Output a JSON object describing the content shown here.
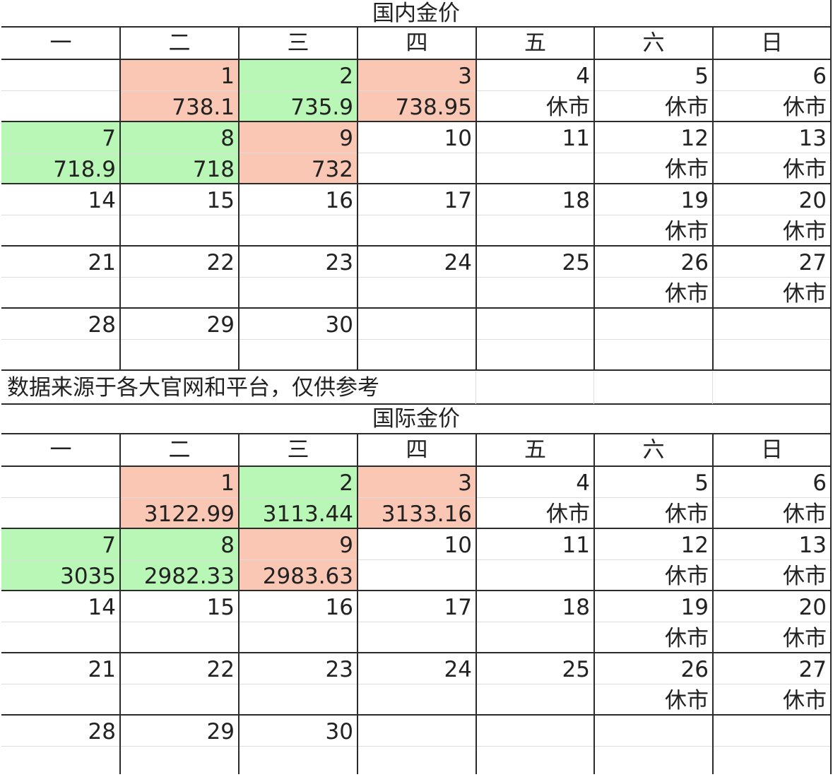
{
  "colors": {
    "up": "#fbc7b5",
    "down": "#b9f7b6",
    "border": "#2b2b2b",
    "gridline": "#dcdcdc"
  },
  "weekdays": [
    "一",
    "二",
    "三",
    "四",
    "五",
    "六",
    "日"
  ],
  "note": "数据来源于各大官网和平台，仅供参考",
  "sections": [
    {
      "title": "国内金价",
      "cells": [
        {
          "row": 0,
          "col": 1,
          "day": "1",
          "value": "738.1",
          "trend": "up"
        },
        {
          "row": 0,
          "col": 2,
          "day": "2",
          "value": "735.9",
          "trend": "down"
        },
        {
          "row": 0,
          "col": 3,
          "day": "3",
          "value": "738.95",
          "trend": "up"
        },
        {
          "row": 0,
          "col": 4,
          "day": "4",
          "value": "休市"
        },
        {
          "row": 0,
          "col": 5,
          "day": "5",
          "value": "休市"
        },
        {
          "row": 0,
          "col": 6,
          "day": "6",
          "value": "休市"
        },
        {
          "row": 1,
          "col": 0,
          "day": "7",
          "value": "718.9",
          "trend": "down"
        },
        {
          "row": 1,
          "col": 1,
          "day": "8",
          "value": "718",
          "trend": "down"
        },
        {
          "row": 1,
          "col": 2,
          "day": "9",
          "value": "732",
          "trend": "up"
        },
        {
          "row": 1,
          "col": 3,
          "day": "10",
          "value": ""
        },
        {
          "row": 1,
          "col": 4,
          "day": "11",
          "value": ""
        },
        {
          "row": 1,
          "col": 5,
          "day": "12",
          "value": "休市"
        },
        {
          "row": 1,
          "col": 6,
          "day": "13",
          "value": "休市"
        },
        {
          "row": 2,
          "col": 0,
          "day": "14",
          "value": ""
        },
        {
          "row": 2,
          "col": 1,
          "day": "15",
          "value": ""
        },
        {
          "row": 2,
          "col": 2,
          "day": "16",
          "value": ""
        },
        {
          "row": 2,
          "col": 3,
          "day": "17",
          "value": ""
        },
        {
          "row": 2,
          "col": 4,
          "day": "18",
          "value": ""
        },
        {
          "row": 2,
          "col": 5,
          "day": "19",
          "value": "休市"
        },
        {
          "row": 2,
          "col": 6,
          "day": "20",
          "value": "休市"
        },
        {
          "row": 3,
          "col": 0,
          "day": "21",
          "value": ""
        },
        {
          "row": 3,
          "col": 1,
          "day": "22",
          "value": ""
        },
        {
          "row": 3,
          "col": 2,
          "day": "23",
          "value": ""
        },
        {
          "row": 3,
          "col": 3,
          "day": "24",
          "value": ""
        },
        {
          "row": 3,
          "col": 4,
          "day": "25",
          "value": ""
        },
        {
          "row": 3,
          "col": 5,
          "day": "26",
          "value": "休市"
        },
        {
          "row": 3,
          "col": 6,
          "day": "27",
          "value": "休市"
        },
        {
          "row": 4,
          "col": 0,
          "day": "28",
          "value": ""
        },
        {
          "row": 4,
          "col": 1,
          "day": "29",
          "value": ""
        },
        {
          "row": 4,
          "col": 2,
          "day": "30",
          "value": ""
        }
      ]
    },
    {
      "title": "国际金价",
      "cells": [
        {
          "row": 0,
          "col": 1,
          "day": "1",
          "value": "3122.99",
          "trend": "up"
        },
        {
          "row": 0,
          "col": 2,
          "day": "2",
          "value": "3113.44",
          "trend": "down"
        },
        {
          "row": 0,
          "col": 3,
          "day": "3",
          "value": "3133.16",
          "trend": "up"
        },
        {
          "row": 0,
          "col": 4,
          "day": "4",
          "value": "休市"
        },
        {
          "row": 0,
          "col": 5,
          "day": "5",
          "value": "休市"
        },
        {
          "row": 0,
          "col": 6,
          "day": "6",
          "value": "休市"
        },
        {
          "row": 1,
          "col": 0,
          "day": "7",
          "value": "3035",
          "trend": "down"
        },
        {
          "row": 1,
          "col": 1,
          "day": "8",
          "value": "2982.33",
          "trend": "down"
        },
        {
          "row": 1,
          "col": 2,
          "day": "9",
          "value": "2983.63",
          "trend": "up"
        },
        {
          "row": 1,
          "col": 3,
          "day": "10",
          "value": ""
        },
        {
          "row": 1,
          "col": 4,
          "day": "11",
          "value": ""
        },
        {
          "row": 1,
          "col": 5,
          "day": "12",
          "value": "休市"
        },
        {
          "row": 1,
          "col": 6,
          "day": "13",
          "value": "休市"
        },
        {
          "row": 2,
          "col": 0,
          "day": "14",
          "value": ""
        },
        {
          "row": 2,
          "col": 1,
          "day": "15",
          "value": ""
        },
        {
          "row": 2,
          "col": 2,
          "day": "16",
          "value": ""
        },
        {
          "row": 2,
          "col": 3,
          "day": "17",
          "value": ""
        },
        {
          "row": 2,
          "col": 4,
          "day": "18",
          "value": ""
        },
        {
          "row": 2,
          "col": 5,
          "day": "19",
          "value": "休市"
        },
        {
          "row": 2,
          "col": 6,
          "day": "20",
          "value": "休市"
        },
        {
          "row": 3,
          "col": 0,
          "day": "21",
          "value": ""
        },
        {
          "row": 3,
          "col": 1,
          "day": "22",
          "value": ""
        },
        {
          "row": 3,
          "col": 2,
          "day": "23",
          "value": ""
        },
        {
          "row": 3,
          "col": 3,
          "day": "24",
          "value": ""
        },
        {
          "row": 3,
          "col": 4,
          "day": "25",
          "value": ""
        },
        {
          "row": 3,
          "col": 5,
          "day": "26",
          "value": "休市"
        },
        {
          "row": 3,
          "col": 6,
          "day": "27",
          "value": "休市"
        },
        {
          "row": 4,
          "col": 0,
          "day": "28",
          "value": ""
        },
        {
          "row": 4,
          "col": 1,
          "day": "29",
          "value": ""
        },
        {
          "row": 4,
          "col": 2,
          "day": "30",
          "value": ""
        }
      ]
    }
  ]
}
